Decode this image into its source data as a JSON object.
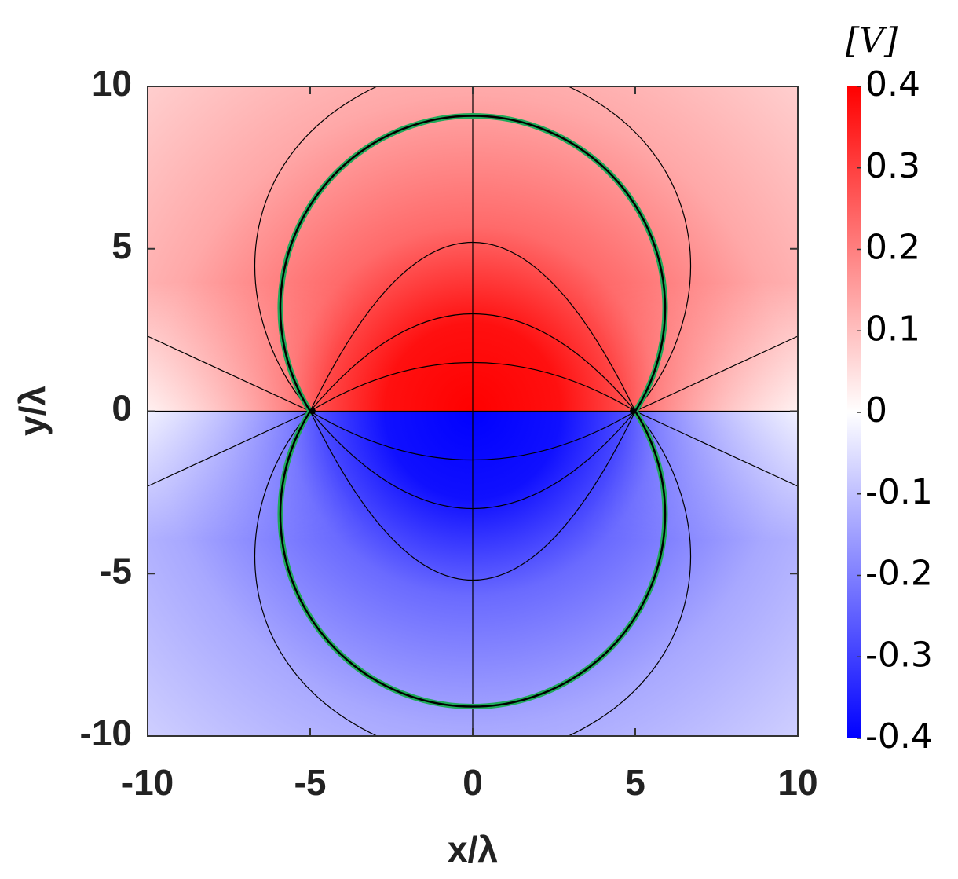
{
  "chart_data": {
    "type": "heatmap",
    "xlabel": "x/λ",
    "ylabel": "y/λ",
    "xlim": [
      -10,
      10
    ],
    "ylim": [
      -10,
      10
    ],
    "xticks": [
      -10,
      -5,
      0,
      5,
      10
    ],
    "yticks": [
      -10,
      -5,
      0,
      5,
      10
    ],
    "colorbar": {
      "label": "[V]",
      "clim": [
        -0.4,
        0.4
      ],
      "cticks": [
        -0.4,
        -0.3,
        -0.2,
        -0.1,
        0,
        0.1,
        0.2,
        0.3,
        0.4
      ],
      "colors": [
        "#0000ff",
        "#ffffff",
        "#ff0000"
      ]
    }
  }
}
